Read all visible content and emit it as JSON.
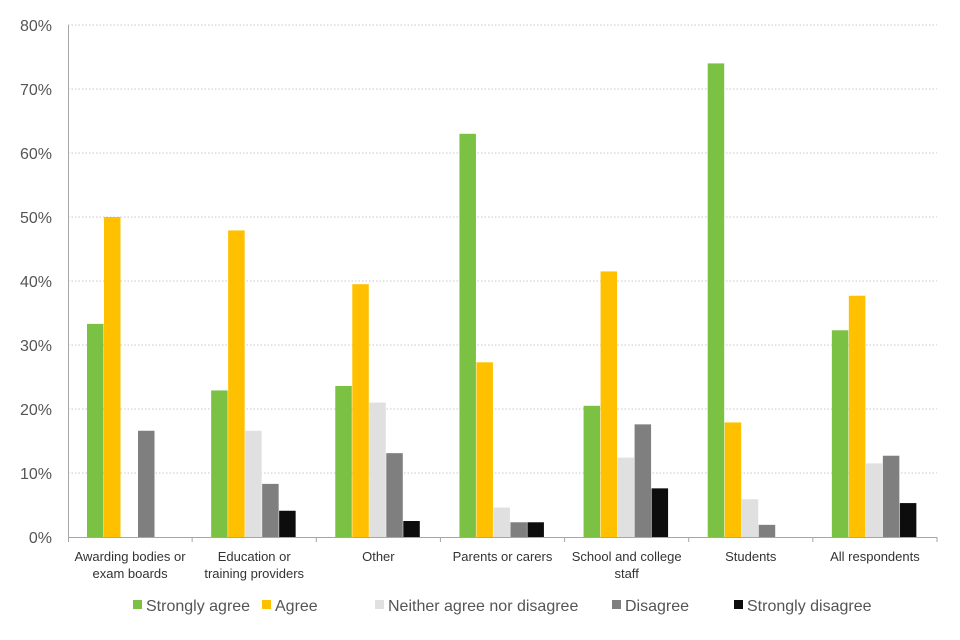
{
  "chart_data": {
    "type": "bar",
    "title": "",
    "xlabel": "",
    "ylabel": "",
    "ylim": [
      0,
      80
    ],
    "yticks": [
      "0%",
      "10%",
      "20%",
      "30%",
      "40%",
      "50%",
      "60%",
      "70%",
      "80%"
    ],
    "grid": true,
    "legend_position": "bottom",
    "categories": [
      [
        "Awarding bodies or",
        "exam boards"
      ],
      [
        "Education or",
        "training providers"
      ],
      [
        "Other"
      ],
      [
        "Parents or carers"
      ],
      [
        "School and college",
        "staff"
      ],
      [
        "Students"
      ],
      [
        "All respondents"
      ]
    ],
    "series": [
      {
        "name": "Strongly agree",
        "color": "#7bc143",
        "values": [
          33.3,
          22.9,
          23.6,
          63.0,
          20.5,
          74.0,
          32.3
        ]
      },
      {
        "name": "Agree",
        "color": "#ffc000",
        "values": [
          50.0,
          47.9,
          39.5,
          27.3,
          41.5,
          17.9,
          37.7
        ]
      },
      {
        "name": "Neither agree nor disagree",
        "color": "#e0e0e0",
        "values": [
          0,
          16.6,
          21.0,
          4.6,
          12.4,
          5.9,
          11.5
        ]
      },
      {
        "name": "Disagree",
        "color": "#7f7f7f",
        "values": [
          16.6,
          8.3,
          13.1,
          2.3,
          17.6,
          1.9,
          12.7
        ]
      },
      {
        "name": "Strongly disagree",
        "color": "#0d0d0d",
        "values": [
          0,
          4.1,
          2.5,
          2.3,
          7.6,
          0,
          5.3
        ]
      }
    ]
  }
}
